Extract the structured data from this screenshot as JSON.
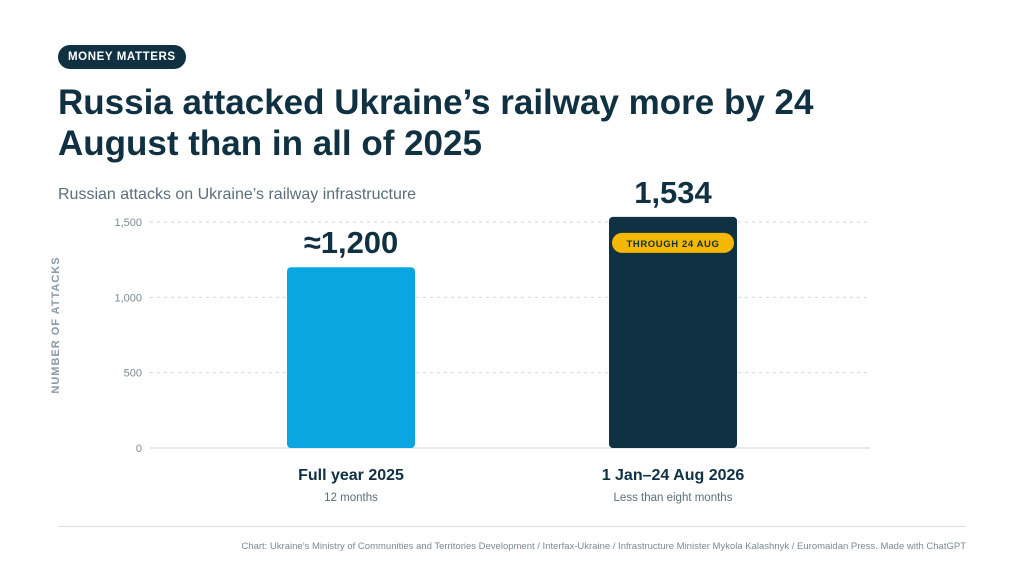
{
  "header": {
    "badge": "MONEY MATTERS",
    "title": "Russia attacked Ukraine’s railway more by 24 August than in all of 2025"
  },
  "chart_data": {
    "type": "bar",
    "subtitle": "Russian attacks on Ukraine’s railway infrastructure",
    "ylabel": "NUMBER OF ATTACKS",
    "ylim": [
      0,
      1500
    ],
    "yticks": [
      0,
      500,
      1000,
      1500
    ],
    "ytick_labels": [
      "0",
      "500",
      "1,000",
      "1,500"
    ],
    "grid": true,
    "categories": [
      "Full year 2025",
      "1 Jan–24 Aug 2026"
    ],
    "category_sublabels": [
      "12 months",
      "Less than eight months"
    ],
    "values": [
      1200,
      1534
    ],
    "value_labels": [
      "≈1,200",
      "1,534"
    ],
    "colors": [
      "#0aa6e2",
      "#0f3142"
    ],
    "annotation": {
      "text": "THROUGH 24 AUG",
      "bar_index": 1,
      "color": "#f5b800"
    }
  },
  "footer": {
    "source": "Chart: Ukraine’s Ministry of Communities and Territories Development / Interfax-Ukraine / Infrastructure Minister Mykola Kalashnyk / Euromaidan Press. Made with ChatGPT"
  }
}
